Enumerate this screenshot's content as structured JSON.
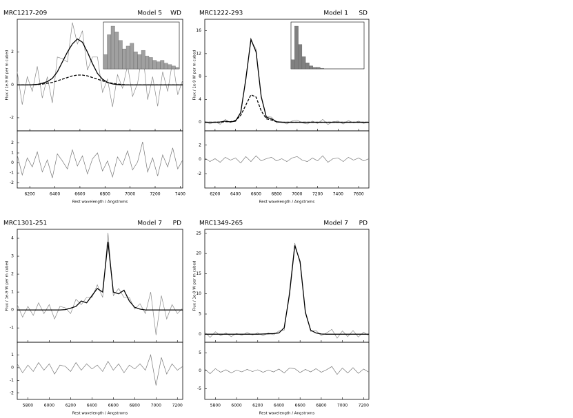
{
  "chart_data": [
    {
      "type": "line",
      "title": "MRC1217-209",
      "model": "Model 5",
      "class": "WD",
      "ylabel": "Flux / 1e-9 W per m cubed",
      "xlabel": "Rest wavelength / Angstroms",
      "x": [
        6100,
        6140,
        6180,
        6220,
        6260,
        6300,
        6340,
        6380,
        6420,
        6460,
        6500,
        6540,
        6580,
        6620,
        6660,
        6700,
        6740,
        6780,
        6820,
        6860,
        6900,
        6940,
        6980,
        7020,
        7060,
        7100,
        7140,
        7180,
        7220,
        7260,
        7300,
        7340,
        7380,
        7420
      ],
      "xlim": [
        6100,
        7420
      ],
      "xticks": [
        6200,
        6400,
        6600,
        6800,
        7000,
        7200,
        7400
      ],
      "ylim": [
        -2.8,
        4
      ],
      "yticks": [
        -2,
        0,
        2
      ],
      "series": [
        {
          "color": "#8a8a8a",
          "values": [
            0.8,
            -1.2,
            0.5,
            -0.39,
            1.13,
            -0.8,
            0.5,
            -1.1,
            1.7,
            1.6,
            1.4,
            3.8,
            2.5,
            3.3,
            0.9,
            1.7,
            1.7,
            -0.45,
            0.35,
            -1.34,
            0.62,
            -0.2,
            1.2,
            -0.7,
            0.1,
            2.1,
            -0.9,
            0.5,
            -1.3,
            0.8,
            -0.4,
            1.5,
            -0.6,
            0.3
          ]
        },
        {
          "color": "#000000",
          "values": [
            0,
            0,
            0,
            0.01,
            0.03,
            0.1,
            0.2,
            0.4,
            0.8,
            1.4,
            2.0,
            2.5,
            2.8,
            2.6,
            2.0,
            1.3,
            0.7,
            0.35,
            0.15,
            0.06,
            0.02,
            0,
            0,
            0,
            0,
            0,
            0,
            0,
            0,
            0,
            0,
            0,
            0,
            0
          ]
        },
        {
          "color": "#000000",
          "dashed": true,
          "values": [
            0,
            0,
            0,
            0,
            0.02,
            0.05,
            0.1,
            0.15,
            0.25,
            0.35,
            0.45,
            0.55,
            0.6,
            0.6,
            0.55,
            0.45,
            0.35,
            0.25,
            0.15,
            0.1,
            0.05,
            0.02,
            0,
            0,
            0,
            0,
            0,
            0,
            0,
            0,
            0,
            0,
            0,
            0
          ]
        }
      ],
      "residual": {
        "color": "#777777",
        "ylim": [
          -2.5,
          3.2
        ],
        "yticks": [
          -2,
          -1,
          0,
          1,
          2
        ],
        "values": [
          0.8,
          -1.2,
          0.5,
          -0.4,
          1.1,
          -0.9,
          0.3,
          -1.5,
          0.9,
          0.2,
          -0.6,
          1.3,
          -0.3,
          0.7,
          -1.1,
          0.4,
          1.0,
          -0.8,
          0.2,
          -1.4,
          0.6,
          -0.2,
          1.2,
          -0.7,
          0.1,
          2.1,
          -0.9,
          0.5,
          -1.3,
          0.8,
          -0.4,
          1.5,
          -0.6,
          0.3
        ]
      },
      "inset": {
        "color": "#a0a0a0",
        "values": [
          10,
          24,
          30,
          26,
          20,
          14,
          16,
          18,
          12,
          10,
          13,
          9,
          8,
          6,
          5,
          6,
          4,
          3,
          2,
          1
        ]
      }
    },
    {
      "type": "line",
      "title": "MRC1222-293",
      "model": "Model 1",
      "class": "SD",
      "ylabel": "Flux / 1e-9 W per m cubed",
      "xlabel": "Rest wavelength / Angstroms",
      "x": [
        6100,
        6150,
        6200,
        6250,
        6300,
        6350,
        6400,
        6450,
        6500,
        6550,
        6600,
        6650,
        6700,
        6750,
        6800,
        6850,
        6900,
        6950,
        7000,
        7050,
        7100,
        7150,
        7200,
        7250,
        7300,
        7350,
        7400,
        7450,
        7500,
        7550,
        7600,
        7650,
        7700
      ],
      "xlim": [
        6100,
        7700
      ],
      "xticks": [
        6200,
        6400,
        6600,
        6800,
        7000,
        7200,
        7400,
        7600
      ],
      "ylim": [
        -1.5,
        18
      ],
      "yticks": [
        0,
        4,
        8,
        12,
        16
      ],
      "series": [
        {
          "color": "#8a8a8a",
          "values": [
            0.2,
            -0.3,
            0.1,
            -0.35,
            0.5,
            -0.05,
            0.4,
            1.2,
            7.9,
            14.2,
            12.8,
            4.3,
            1.0,
            0.9,
            -0.1,
            0.1,
            -0.3,
            0.2,
            0.4,
            -0.1,
            -0.3,
            0.2,
            -0.2,
            0.5,
            -0.4,
            0.1,
            0.2,
            -0.3,
            0.3,
            -0.1,
            0.2,
            -0.2,
            0.1
          ]
        },
        {
          "color": "#000000",
          "values": [
            0,
            0,
            0,
            0.05,
            0.2,
            0.05,
            0.2,
            1.7,
            7.5,
            14.5,
            12.3,
            4.5,
            0.9,
            0.6,
            0.1,
            0,
            0,
            0,
            0,
            0,
            0,
            0,
            0,
            0,
            0,
            0,
            0,
            0,
            0,
            0,
            0,
            0,
            0
          ]
        },
        {
          "color": "#000000",
          "dashed": true,
          "values": [
            0,
            0,
            0,
            0,
            0.1,
            0.1,
            0.3,
            1.2,
            3.0,
            4.8,
            4.4,
            2.0,
            0.6,
            0.4,
            0.1,
            0,
            0,
            0,
            0,
            0,
            0,
            0,
            0,
            0,
            0,
            0,
            0,
            0,
            0,
            0,
            0,
            0,
            0
          ]
        }
      ],
      "residual": {
        "color": "#777777",
        "ylim": [
          -4,
          4
        ],
        "yticks": [
          -2,
          0,
          2
        ],
        "values": [
          0.2,
          -0.3,
          0.1,
          -0.4,
          0.3,
          -0.1,
          0.2,
          -0.5,
          0.4,
          -0.3,
          0.5,
          -0.2,
          0.1,
          0.3,
          -0.2,
          0.1,
          -0.3,
          0.2,
          0.4,
          -0.1,
          -0.3,
          0.2,
          -0.2,
          0.5,
          -0.4,
          0.1,
          0.2,
          -0.3,
          0.3,
          -0.1,
          0.2,
          -0.2,
          0.1
        ]
      },
      "inset": {
        "color": "#808080",
        "values": [
          3,
          14,
          8,
          4,
          2,
          1,
          0.5,
          0.5,
          0.2,
          0,
          0,
          0,
          0,
          0,
          0,
          0,
          0,
          0,
          0,
          0
        ]
      }
    },
    {
      "type": "line",
      "title": "MRC1301-251",
      "model": "Model 7",
      "class": "PD",
      "ylabel": "Flux / 1e-9 W per m cubed",
      "xlabel": "Rest wavelength / Angstroms",
      "x": [
        5700,
        5750,
        5800,
        5850,
        5900,
        5950,
        6000,
        6050,
        6100,
        6150,
        6200,
        6250,
        6300,
        6350,
        6400,
        6450,
        6500,
        6550,
        6600,
        6650,
        6700,
        6750,
        6800,
        6850,
        6900,
        6950,
        7000,
        7050,
        7100,
        7150,
        7200,
        7250
      ],
      "xlim": [
        5700,
        7250
      ],
      "xticks": [
        5800,
        6000,
        6200,
        6400,
        6600,
        6800,
        7000,
        7200
      ],
      "ylim": [
        -1.8,
        4.5
      ],
      "yticks": [
        -1,
        0,
        1,
        2,
        3,
        4
      ],
      "series": [
        {
          "color": "#8a8a8a",
          "values": [
            0.3,
            -0.4,
            0.2,
            -0.3,
            0.4,
            -0.2,
            0.3,
            -0.5,
            0.2,
            0.12,
            -0.2,
            0.6,
            0.3,
            0.7,
            0.7,
            1.4,
            0.7,
            4.3,
            0.8,
            1.2,
            0.7,
            0.7,
            0.05,
            0.35,
            -0.2,
            1.0,
            -1.4,
            0.8,
            -0.5,
            0.3,
            -0.2,
            0.1
          ]
        },
        {
          "color": "#000000",
          "values": [
            0,
            0,
            0,
            0,
            0,
            0,
            0,
            0,
            0,
            0.02,
            0.1,
            0.2,
            0.5,
            0.4,
            0.8,
            1.2,
            1.0,
            3.8,
            1.0,
            0.9,
            1.1,
            0.5,
            0.15,
            0.05,
            0,
            0,
            0,
            0,
            0,
            0,
            0,
            0
          ]
        }
      ],
      "residual": {
        "color": "#777777",
        "ylim": [
          -2.5,
          2
        ],
        "yticks": [
          -2,
          -1,
          0,
          1
        ],
        "values": [
          0.3,
          -0.4,
          0.2,
          -0.3,
          0.4,
          -0.2,
          0.3,
          -0.5,
          0.2,
          0.1,
          -0.3,
          0.4,
          -0.2,
          0.3,
          -0.1,
          0.2,
          -0.3,
          0.5,
          -0.2,
          0.3,
          -0.4,
          0.2,
          -0.1,
          0.3,
          -0.2,
          1.0,
          -1.4,
          0.8,
          -0.5,
          0.3,
          -0.2,
          0.1
        ]
      }
    },
    {
      "type": "line",
      "title": "MRC1349-265",
      "model": "Model 7",
      "class": "PD",
      "ylabel": "Flux / 1e-9 W per m cubed",
      "xlabel": "Rest wavelength / Angstroms",
      "x": [
        5700,
        5750,
        5800,
        5850,
        5900,
        5950,
        6000,
        6050,
        6100,
        6150,
        6200,
        6250,
        6300,
        6350,
        6400,
        6450,
        6500,
        6550,
        6600,
        6650,
        6700,
        6750,
        6800,
        6850,
        6900,
        6950,
        7000,
        7050,
        7100,
        7150,
        7200,
        7250
      ],
      "xlim": [
        5700,
        7250
      ],
      "xticks": [
        5800,
        6000,
        6200,
        6400,
        6600,
        6800,
        7000,
        7200
      ],
      "ylim": [
        -2,
        26
      ],
      "yticks": [
        0,
        5,
        10,
        15,
        20,
        25
      ],
      "series": [
        {
          "color": "#8a8a8a",
          "values": [
            0.5,
            -0.8,
            0.6,
            -0.4,
            0.3,
            -0.6,
            0.2,
            -0.3,
            0.4,
            -0.2,
            0.3,
            -0.35,
            0.3,
            -0.15,
            0.8,
            1.0,
            10.7,
            22.6,
            17.5,
            5.8,
            0.7,
            0.9,
            -0.35,
            0.3,
            1.2,
            -1.0,
            0.8,
            -0.6,
            0.9,
            -0.7,
            0.5,
            -0.4
          ]
        },
        {
          "color": "#000000",
          "values": [
            0,
            0,
            0,
            0,
            0,
            0,
            0,
            0,
            0,
            0,
            0,
            0.05,
            0.1,
            0.15,
            0.3,
            1.6,
            9.9,
            22,
            18,
            5.4,
            1.0,
            0.3,
            0.05,
            0,
            0,
            0,
            0,
            0,
            0,
            0,
            0,
            0
          ]
        }
      ],
      "residual": {
        "color": "#777777",
        "ylim": [
          -8,
          8
        ],
        "yticks": [
          -5,
          0,
          5
        ],
        "values": [
          0.5,
          -0.8,
          0.6,
          -0.4,
          0.3,
          -0.6,
          0.2,
          -0.3,
          0.4,
          -0.2,
          0.3,
          -0.4,
          0.2,
          -0.3,
          0.5,
          -0.6,
          0.8,
          0.6,
          -0.5,
          0.4,
          -0.3,
          0.6,
          -0.4,
          0.3,
          1.2,
          -1.0,
          0.8,
          -0.6,
          0.9,
          -0.7,
          0.5,
          -0.4
        ]
      }
    }
  ]
}
